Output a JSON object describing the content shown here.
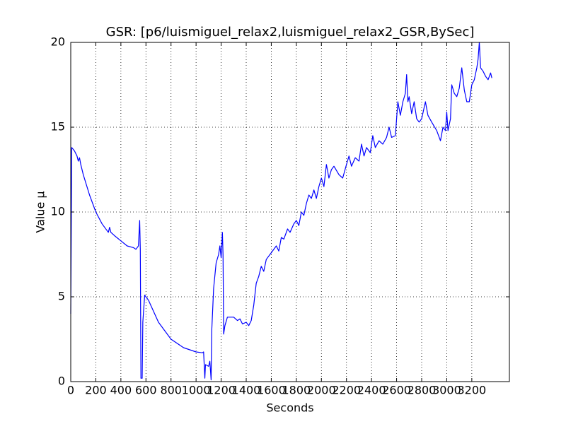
{
  "chart_data": {
    "type": "line",
    "title": "GSR: [p6/luismiguel_relax2,luismiguel_relax2_GSR,BySec]",
    "x_label": "Seconds",
    "y_label": "Value μ",
    "color": "#0000ff",
    "grid": true,
    "xlim": [
      0,
      3500
    ],
    "ylim": [
      0,
      20
    ],
    "xticks": [
      0,
      200,
      400,
      600,
      800,
      1000,
      1200,
      1400,
      1600,
      1800,
      2000,
      2200,
      2400,
      2600,
      2800,
      3000,
      3200
    ],
    "yticks": [
      0,
      5,
      10,
      15,
      20
    ],
    "x": [
      0,
      8,
      30,
      50,
      60,
      70,
      80,
      100,
      150,
      200,
      250,
      300,
      310,
      320,
      350,
      400,
      450,
      500,
      520,
      540,
      550,
      555,
      560,
      570,
      575,
      590,
      620,
      700,
      800,
      900,
      1000,
      1050,
      1060,
      1070,
      1075,
      1100,
      1110,
      1120,
      1125,
      1140,
      1160,
      1180,
      1190,
      1200,
      1210,
      1215,
      1220,
      1230,
      1250,
      1300,
      1330,
      1350,
      1370,
      1400,
      1420,
      1440,
      1460,
      1480,
      1500,
      1520,
      1540,
      1560,
      1600,
      1640,
      1660,
      1680,
      1700,
      1730,
      1750,
      1780,
      1800,
      1820,
      1840,
      1860,
      1880,
      1900,
      1920,
      1940,
      1960,
      1980,
      2000,
      2020,
      2040,
      2060,
      2080,
      2100,
      2140,
      2170,
      2200,
      2220,
      2240,
      2270,
      2300,
      2320,
      2340,
      2360,
      2390,
      2410,
      2430,
      2460,
      2490,
      2520,
      2540,
      2560,
      2590,
      2610,
      2630,
      2650,
      2670,
      2680,
      2690,
      2700,
      2720,
      2740,
      2760,
      2780,
      2800,
      2830,
      2850,
      2880,
      2920,
      2950,
      2970,
      2990,
      3000,
      3010,
      3030,
      3040,
      3060,
      3080,
      3100,
      3120,
      3140,
      3160,
      3180,
      3200,
      3220,
      3240,
      3250,
      3260,
      3270,
      3290,
      3310,
      3330,
      3350,
      3360
    ],
    "values": [
      4,
      13.8,
      13.6,
      13.3,
      13.0,
      13.2,
      12.8,
      12.2,
      11.0,
      10.0,
      9.3,
      8.8,
      9.1,
      8.8,
      8.6,
      8.3,
      8.0,
      7.9,
      7.8,
      8.0,
      9.5,
      7.8,
      0.2,
      0.2,
      3.5,
      5.1,
      4.8,
      3.5,
      2.5,
      2.0,
      1.75,
      1.7,
      1.75,
      0.2,
      1.0,
      0.9,
      1.2,
      0.1,
      3.0,
      5.5,
      7.0,
      7.5,
      8.0,
      7.3,
      8.8,
      7.5,
      2.8,
      3.3,
      3.8,
      3.8,
      3.6,
      3.7,
      3.4,
      3.5,
      3.3,
      3.6,
      4.5,
      5.8,
      6.2,
      6.8,
      6.5,
      7.2,
      7.6,
      8.0,
      7.7,
      8.5,
      8.4,
      9.0,
      8.8,
      9.3,
      9.5,
      9.2,
      10.0,
      9.8,
      10.5,
      11.0,
      10.8,
      11.3,
      10.8,
      11.5,
      12.0,
      11.5,
      12.8,
      12.0,
      12.5,
      12.7,
      12.2,
      12.0,
      12.8,
      13.3,
      12.7,
      13.2,
      13.0,
      14.0,
      13.3,
      13.8,
      13.5,
      14.5,
      13.8,
      14.2,
      14.0,
      14.4,
      15.0,
      14.4,
      14.5,
      16.5,
      15.7,
      16.5,
      17.0,
      18.1,
      16.5,
      16.8,
      15.8,
      16.5,
      15.5,
      15.3,
      15.5,
      16.5,
      15.7,
      15.3,
      14.8,
      14.2,
      15.0,
      14.8,
      15.9,
      14.8,
      15.5,
      17.5,
      17.0,
      16.8,
      17.3,
      18.5,
      17.2,
      16.5,
      16.5,
      17.5,
      17.8,
      18.5,
      19.0,
      20.0,
      18.5,
      18.3,
      18.0,
      17.8,
      18.2,
      17.9
    ]
  }
}
